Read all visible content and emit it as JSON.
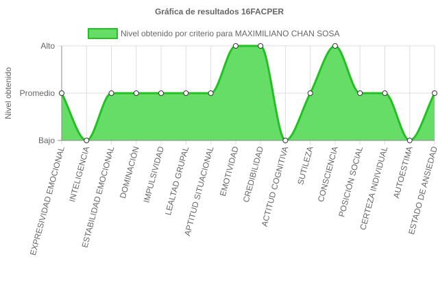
{
  "chart_data": {
    "type": "area",
    "title": "Gráfica de resultados 16FACPER",
    "ylabel": "Nivel obtenido",
    "xlabel": "",
    "y_levels": [
      "Bajo",
      "Promedio",
      "Alto"
    ],
    "ylim": [
      0,
      2
    ],
    "grid": true,
    "legend_position": "top",
    "categories": [
      "EXPRESIVIDAD EMOCIONAL",
      "INTELIGENCIA",
      "ESTABILIDAD EMOCIONAL",
      "DOMINACIÓN",
      "IMPULSIVIDAD",
      "LEALTAD GRUPAL",
      "APTITUD SITUACIONAL",
      "EMOTIVIDAD",
      "CREDIBILIDAD",
      "ACTITUD COGNITIVA",
      "SUTILEZA",
      "CONSCIENCIA",
      "POSICIÓN SOCIAL",
      "CERTEZA INDIVIDUAL",
      "AUTOESTIMA",
      "ESTADO DE ANSIEDAD"
    ],
    "series": [
      {
        "name": "Nivel obtenido por criterio para MAXIMILIANO CHAN SOSA",
        "values": [
          1,
          0,
          1,
          1,
          1,
          1,
          1,
          2,
          2,
          0,
          1,
          2,
          1,
          1,
          0,
          1
        ],
        "labels": [
          "Promedio",
          "Bajo",
          "Promedio",
          "Promedio",
          "Promedio",
          "Promedio",
          "Promedio",
          "Alto",
          "Alto",
          "Bajo",
          "Promedio",
          "Alto",
          "Promedio",
          "Promedio",
          "Bajo",
          "Promedio"
        ]
      }
    ],
    "colors": {
      "fill": "#66dd66",
      "stroke": "#22c022",
      "grid": "#dddddd",
      "axis": "#888888",
      "text": "#666666",
      "title": "#666666"
    }
  }
}
